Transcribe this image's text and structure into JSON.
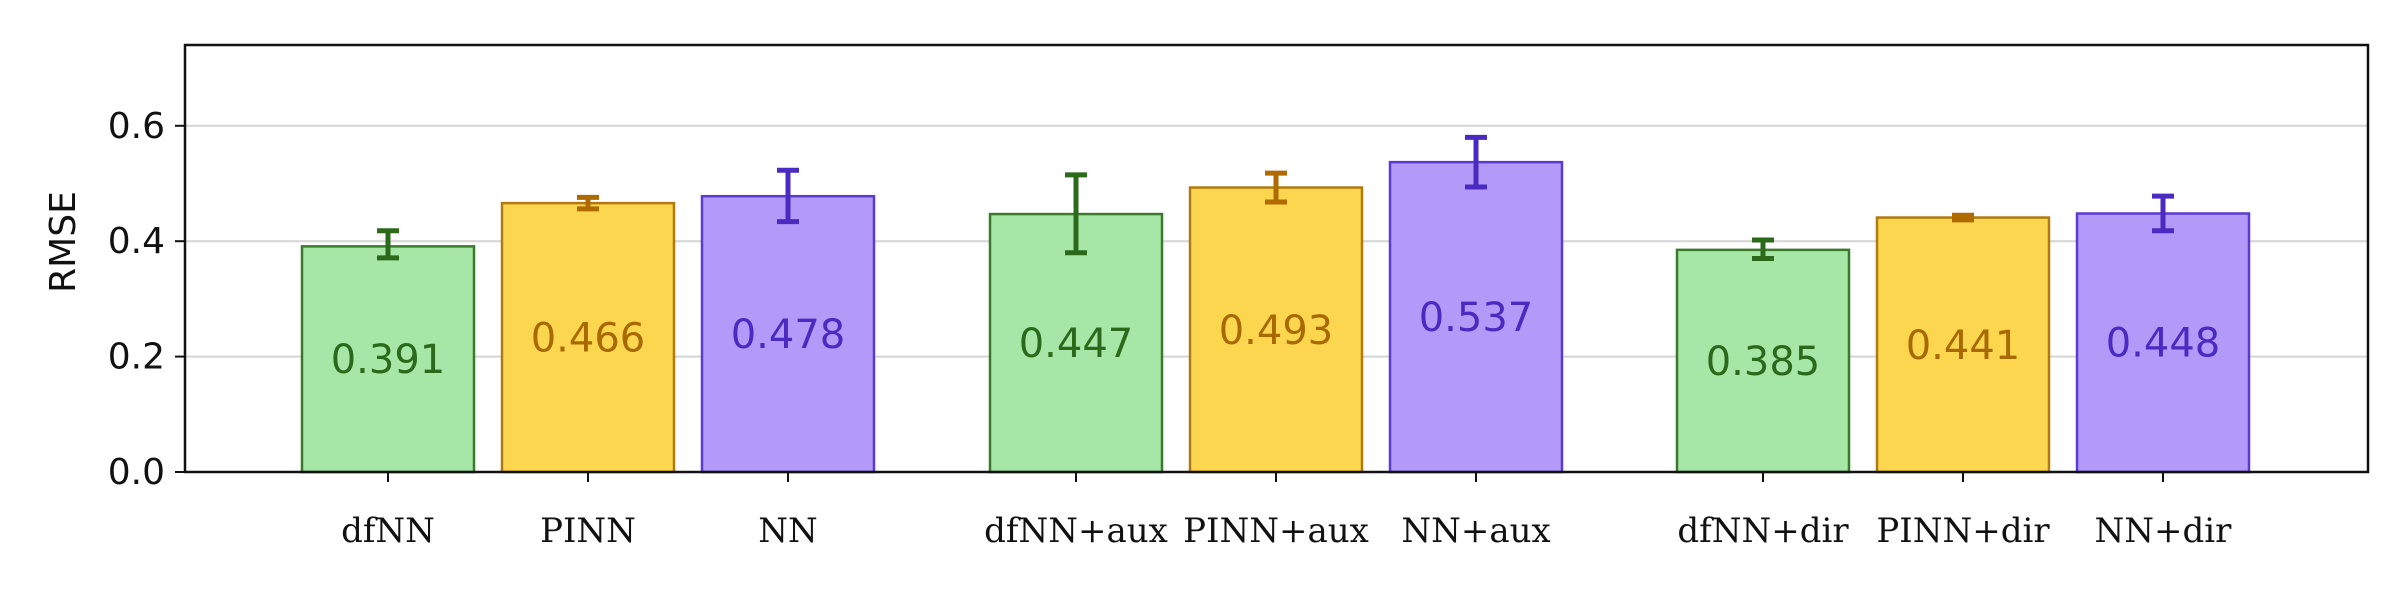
{
  "chart_data": {
    "type": "bar",
    "title": "",
    "xlabel": "",
    "ylabel": "RMSE",
    "ylim": [
      0,
      0.74
    ],
    "yticks": [
      "0.0",
      "0.2",
      "0.4",
      "0.6"
    ],
    "grid": "horizontal",
    "groups": [
      {
        "bars": [
          {
            "label": "dfNN",
            "value": 0.391,
            "value_label": "0.391",
            "err_low": 0.371,
            "err_high": 0.418,
            "family": "dfNN"
          },
          {
            "label": "PINN",
            "value": 0.466,
            "value_label": "0.466",
            "err_low": 0.456,
            "err_high": 0.476,
            "family": "PINN"
          },
          {
            "label": "NN",
            "value": 0.478,
            "value_label": "0.478",
            "err_low": 0.434,
            "err_high": 0.523,
            "family": "NN"
          }
        ]
      },
      {
        "bars": [
          {
            "label": "dfNN+aux",
            "value": 0.447,
            "value_label": "0.447",
            "err_low": 0.38,
            "err_high": 0.515,
            "family": "dfNN"
          },
          {
            "label": "PINN+aux",
            "value": 0.493,
            "value_label": "0.493",
            "err_low": 0.468,
            "err_high": 0.518,
            "family": "PINN"
          },
          {
            "label": "NN+aux",
            "value": 0.537,
            "value_label": "0.537",
            "err_low": 0.494,
            "err_high": 0.58,
            "family": "NN"
          }
        ]
      },
      {
        "bars": [
          {
            "label": "dfNN+dir",
            "value": 0.385,
            "value_label": "0.385",
            "err_low": 0.37,
            "err_high": 0.402,
            "family": "dfNN"
          },
          {
            "label": "PINN+dir",
            "value": 0.441,
            "value_label": "0.441",
            "err_low": 0.437,
            "err_high": 0.445,
            "family": "PINN"
          },
          {
            "label": "NN+dir",
            "value": 0.448,
            "value_label": "0.448",
            "err_low": 0.418,
            "err_high": 0.478,
            "family": "NN"
          }
        ]
      }
    ],
    "colors": {
      "dfNN": {
        "fill": "#a6e6a6",
        "stroke": "#3a7a2a",
        "error": "#2a6a1a",
        "text": "#2a6a1a"
      },
      "PINN": {
        "fill": "#fcd64e",
        "stroke": "#b07a10",
        "error": "#b06a00",
        "text": "#a86a00"
      },
      "NN": {
        "fill": "#b39af8",
        "stroke": "#5a3ad0",
        "error": "#4a2ac0",
        "text": "#4a2ac0"
      }
    }
  }
}
